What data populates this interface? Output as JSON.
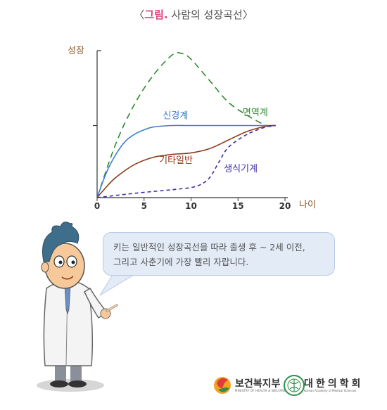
{
  "title": {
    "open": "〈",
    "accent": "그림.",
    "text": " 사람의 성장곡선",
    "close": "〉"
  },
  "chart_data": {
    "type": "line",
    "ylabel": "성장",
    "xlabel": "나이",
    "xlim": [
      0,
      20
    ],
    "ylim": [
      0,
      2
    ],
    "x_ticks": [
      "0",
      "5",
      "10",
      "15",
      "20"
    ],
    "series": [
      {
        "name": "면역계",
        "color": "#2e8b2e",
        "dash": "dashed",
        "points": [
          [
            0,
            0
          ],
          [
            2,
            0.75
          ],
          [
            4,
            1.3
          ],
          [
            6,
            1.7
          ],
          [
            8,
            1.98
          ],
          [
            9,
            2.0
          ],
          [
            10,
            1.92
          ],
          [
            12,
            1.62
          ],
          [
            14,
            1.32
          ],
          [
            16,
            1.14
          ],
          [
            18,
            1.0
          ],
          [
            19,
            0.99
          ]
        ]
      },
      {
        "name": "신경계",
        "color": "#3a7fd5",
        "dash": "solid",
        "points": [
          [
            0,
            0
          ],
          [
            1,
            0.35
          ],
          [
            2,
            0.6
          ],
          [
            3,
            0.78
          ],
          [
            4,
            0.88
          ],
          [
            5,
            0.94
          ],
          [
            6,
            0.98
          ],
          [
            8,
            1.0
          ],
          [
            10,
            1.0
          ],
          [
            15,
            1.0
          ],
          [
            19,
            1.0
          ]
        ]
      },
      {
        "name": "기타일반",
        "color": "#8b3a1a",
        "dash": "solid",
        "points": [
          [
            0,
            0
          ],
          [
            1,
            0.15
          ],
          [
            2,
            0.28
          ],
          [
            4,
            0.46
          ],
          [
            6,
            0.56
          ],
          [
            8,
            0.6
          ],
          [
            10,
            0.62
          ],
          [
            12,
            0.68
          ],
          [
            14,
            0.8
          ],
          [
            16,
            0.92
          ],
          [
            18,
            0.99
          ],
          [
            19,
            1.0
          ]
        ]
      },
      {
        "name": "생식기계",
        "color": "#3a2fa8",
        "dash": "short-dashed",
        "points": [
          [
            0,
            0
          ],
          [
            4,
            0.06
          ],
          [
            8,
            0.11
          ],
          [
            10,
            0.14
          ],
          [
            11,
            0.18
          ],
          [
            12,
            0.28
          ],
          [
            13,
            0.5
          ],
          [
            14,
            0.7
          ],
          [
            16,
            0.88
          ],
          [
            18,
            0.98
          ],
          [
            19,
            1.0
          ]
        ]
      }
    ],
    "grid": false,
    "legend": "inline labels"
  },
  "speech": {
    "line1": "키는 일반적인 성장곡선을 따라 출생 후 ~ 2세 이전,",
    "line2": "그리고 사춘기에 가장 빨리 자랍니다."
  },
  "logos": {
    "logo1_text": "보건복지부",
    "logo1_sub": "MINISTRY OF HEALTH & WELFARE",
    "logo2_text": "대한의학회",
    "logo2_sub": "Korean Academy of Medical Sciences"
  },
  "colors": {
    "accent": "#e0407a",
    "axis_label": "#8b5a2b",
    "bubble_bg": "#e3ebf7",
    "coat": "#f4f4f4",
    "skin": "#f7c99a",
    "hair": "#3f6e8a"
  }
}
